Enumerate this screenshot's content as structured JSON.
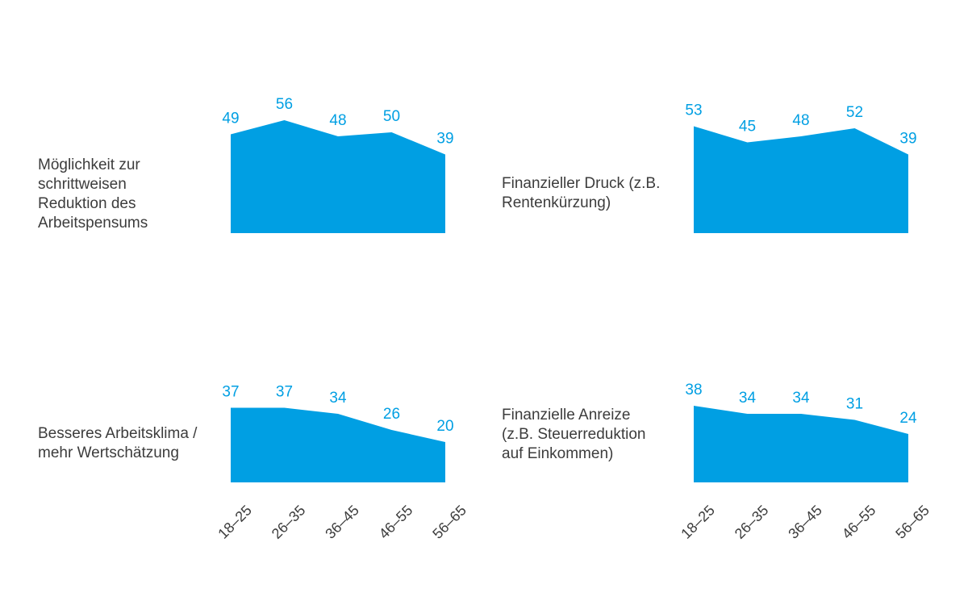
{
  "chart_data": [
    {
      "type": "area",
      "label": "Möglichkeit zur schrittweisen Reduktion des Arbeitspensums",
      "categories": [
        "18–25",
        "26–35",
        "36–45",
        "46–55",
        "56–65"
      ],
      "values": [
        49,
        56,
        48,
        50,
        39
      ],
      "color": "#009fe3"
    },
    {
      "type": "area",
      "label": "Finanzieller Druck (z.B. Rentenkürzung)",
      "categories": [
        "18–25",
        "26–35",
        "36–45",
        "46–55",
        "56–65"
      ],
      "values": [
        53,
        45,
        48,
        52,
        39
      ],
      "color": "#009fe3"
    },
    {
      "type": "area",
      "label": "Besseres Arbeitsklima / mehr Wertschätzung",
      "categories": [
        "18–25",
        "26–35",
        "36–45",
        "46–55",
        "56–65"
      ],
      "values": [
        37,
        37,
        34,
        26,
        20
      ],
      "color": "#009fe3"
    },
    {
      "type": "area",
      "label": "Finanzielle Anreize (z.B. Steuerreduktion auf Einkommen)",
      "categories": [
        "18–25",
        "26–35",
        "36–45",
        "46–55",
        "56–65"
      ],
      "values": [
        38,
        34,
        34,
        31,
        24
      ],
      "color": "#009fe3"
    }
  ],
  "colors": {
    "area": "#009fe3",
    "value_label": "#009fe3",
    "text": "#3c3c3c"
  }
}
